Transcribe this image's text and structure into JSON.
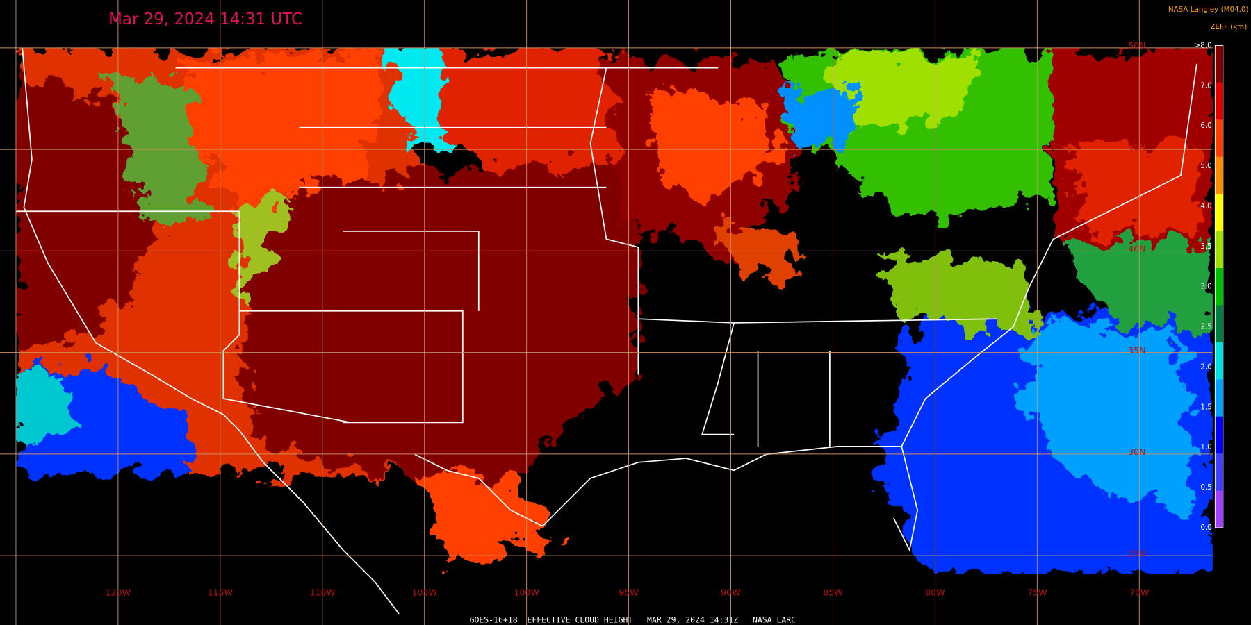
{
  "header": {
    "title": "Mar 29, 2024 14:31 UTC",
    "source": "NASA Langley (M04.0)",
    "unit": "ZEFF (km)"
  },
  "colorbar": {
    "labels": [
      ">8.0",
      "7.0",
      "6.0",
      "5.0",
      "4.0",
      "3.5",
      "3.0",
      "2.5",
      "2.0",
      "1.5",
      "1.0",
      "0.5",
      "0.0"
    ],
    "colors": [
      "#800000",
      "#e00000",
      "#ff4000",
      "#ff8c00",
      "#ffff00",
      "#a0e000",
      "#00c000",
      "#008040",
      "#00e0e0",
      "#00a0ff",
      "#0000ff",
      "#4040ff",
      "#a040ff"
    ]
  },
  "longitude_labels": [
    "120W",
    "115W",
    "110W",
    "105W",
    "100W",
    "95W",
    "90W",
    "85W",
    "80W",
    "75W",
    "70W"
  ],
  "latitude_labels": [
    "50N",
    "45N",
    "40N",
    "35N",
    "30N",
    "25N"
  ],
  "footer": "GOES-16+18  EFFECTIVE CLOUD HEIGHT   MAR 29, 2024 14:31Z   NASA LARC"
}
